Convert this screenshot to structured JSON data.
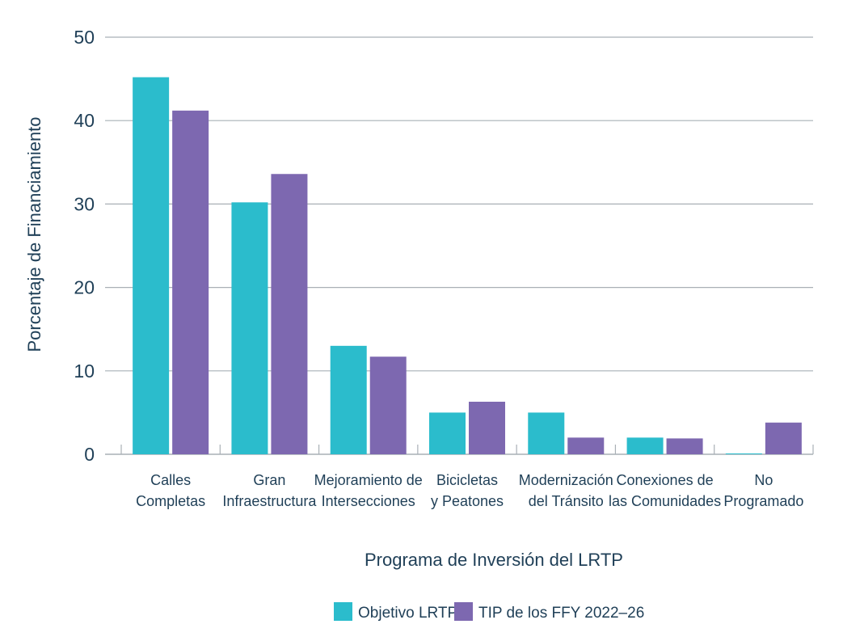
{
  "chart_data": {
    "type": "bar",
    "title": "",
    "xlabel": "Programa de Inversión del LRTP",
    "ylabel": "Porcentaje de Financiamiento",
    "ylim": [
      0,
      50
    ],
    "yticks": [
      0,
      10,
      20,
      30,
      40,
      50
    ],
    "grid": true,
    "legend_position": "bottom",
    "categories": [
      [
        "Calles",
        "Completas"
      ],
      [
        "Gran",
        "Infraestructura"
      ],
      [
        "Mejoramiento de",
        "Intersecciones"
      ],
      [
        "Bicicletas",
        "y Peatones"
      ],
      [
        "Modernización",
        "del Tránsito"
      ],
      [
        "Conexiones de",
        "las Comunidades"
      ],
      [
        "No",
        "Programado"
      ]
    ],
    "series": [
      {
        "name": "Objetivo LRTP",
        "color": "#2bbccc",
        "values": [
          45.2,
          30.2,
          13.0,
          5.0,
          5.0,
          2.0,
          0.1
        ]
      },
      {
        "name": "TIP de los FFY 2022–26",
        "color": "#7d68b0",
        "values": [
          41.2,
          33.6,
          11.7,
          6.3,
          2.0,
          1.9,
          3.8
        ]
      }
    ]
  }
}
